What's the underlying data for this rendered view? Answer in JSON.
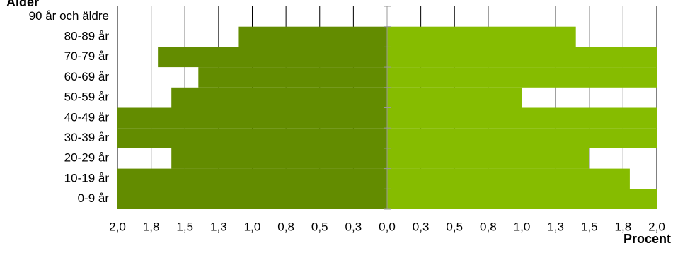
{
  "chart_data": {
    "type": "bar",
    "orientation": "horizontal",
    "subtype": "population-pyramid",
    "categories": [
      "0-9 år",
      "10-19 år",
      "20-29 år",
      "30-39 år",
      "40-49 år",
      "50-59 år",
      "60-69 år",
      "70-79 år",
      "80-89 år",
      "90 år och äldre"
    ],
    "series": [
      {
        "side": "left",
        "color": "#638C00",
        "values": [
          2.0,
          2.0,
          1.6,
          2.0,
          2.0,
          1.6,
          1.4,
          1.7,
          1.1,
          0.0
        ]
      },
      {
        "side": "right",
        "color": "#86BC00",
        "values": [
          2.0,
          1.8,
          1.5,
          2.0,
          2.0,
          1.0,
          2.0,
          2.0,
          1.4,
          0.0
        ]
      }
    ],
    "xlim": [
      0,
      2.0
    ],
    "ticks": [
      "2,0",
      "1,8",
      "1,5",
      "1,3",
      "1,0",
      "0,8",
      "0,5",
      "0,3",
      "0,0",
      "0,3",
      "0,5",
      "0,8",
      "1,0",
      "1,3",
      "1,5",
      "1,8",
      "2,0"
    ],
    "ylabel": "Ålder",
    "xlabel": "Procent",
    "grid": true
  }
}
